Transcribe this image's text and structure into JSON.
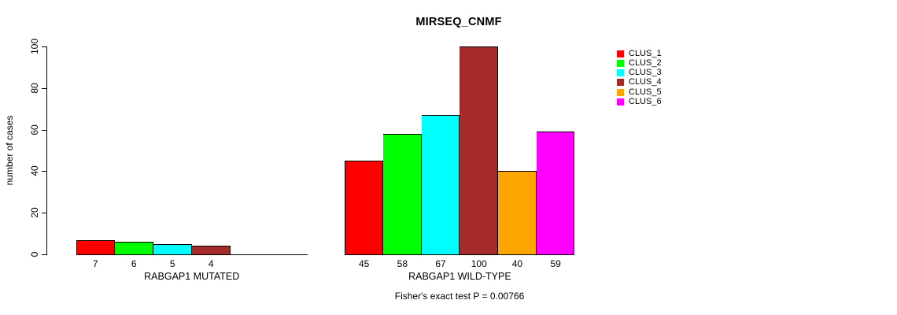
{
  "title": "MIRSEQ_CNMF",
  "y_axis": {
    "label": "number of cases"
  },
  "footer": "Fisher's exact test P = 0.00766",
  "chart_data": {
    "type": "bar",
    "title": "MIRSEQ_CNMF",
    "xlabel": "",
    "ylabel": "number of cases",
    "ylim": [
      0,
      100
    ],
    "yticks": [
      0,
      20,
      40,
      60,
      80,
      100
    ],
    "grid": false,
    "legend_position": "right-top",
    "categories": [
      "CLUS_1",
      "CLUS_2",
      "CLUS_3",
      "CLUS_4",
      "CLUS_5",
      "CLUS_6"
    ],
    "colors": [
      "#FF0000",
      "#00FF00",
      "#00FFFF",
      "#A52A2A",
      "#FFA500",
      "#FF00FF"
    ],
    "groups": [
      {
        "label": "RABGAP1 MUTATED",
        "values": [
          7,
          6,
          5,
          4,
          0,
          0
        ]
      },
      {
        "label": "RABGAP1 WILD-TYPE",
        "values": [
          45,
          58,
          67,
          100,
          40,
          59
        ]
      }
    ],
    "annotation": "Fisher's exact test P = 0.00766"
  }
}
